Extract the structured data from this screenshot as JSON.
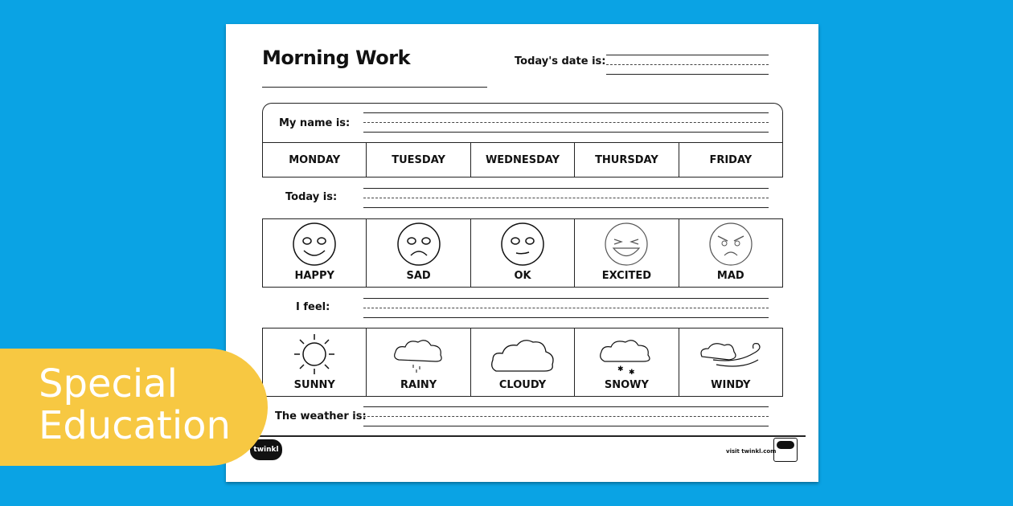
{
  "worksheet": {
    "title": "Morning Work",
    "date_label": "Today's date is:",
    "name_label": "My name is:",
    "days": [
      "MONDAY",
      "TUESDAY",
      "WEDNESDAY",
      "THURSDAY",
      "FRIDAY"
    ],
    "today_label": "Today is:",
    "feelings": [
      {
        "label": "HAPPY",
        "icon": "happy-face-icon"
      },
      {
        "label": "SAD",
        "icon": "sad-face-icon"
      },
      {
        "label": "OK",
        "icon": "ok-face-icon"
      },
      {
        "label": "EXCITED",
        "icon": "excited-face-icon"
      },
      {
        "label": "MAD",
        "icon": "mad-face-icon"
      }
    ],
    "feel_label": "I feel:",
    "weather": [
      {
        "label": "SUNNY",
        "icon": "sun-icon"
      },
      {
        "label": "RAINY",
        "icon": "rain-cloud-icon"
      },
      {
        "label": "CLOUDY",
        "icon": "cloud-icon"
      },
      {
        "label": "SNOWY",
        "icon": "snow-cloud-icon"
      },
      {
        "label": "WINDY",
        "icon": "wind-icon"
      }
    ],
    "weather_label": "The weather is:",
    "footer_logo": "twinkl",
    "footer_link": "visit twinkl.com"
  },
  "banner": {
    "line1": "Special",
    "line2": "Education"
  },
  "colors": {
    "background": "#0aa3e4",
    "banner": "#f7c842"
  }
}
